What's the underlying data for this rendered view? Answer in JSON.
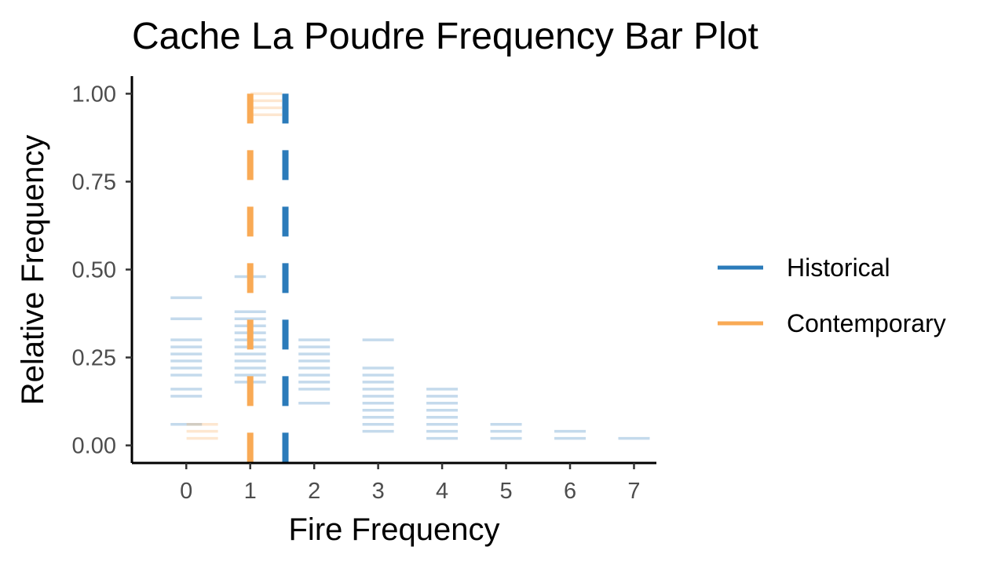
{
  "chart_data": {
    "type": "bar",
    "title": "Cache La Poudre Frequency Bar Plot",
    "xlabel": "Fire Frequency",
    "ylabel": "Relative Frequency",
    "x_ticks": [
      "0",
      "1",
      "2",
      "3",
      "4",
      "5",
      "6",
      "7"
    ],
    "y_ticks": [
      "0.00",
      "0.25",
      "0.50",
      "0.75",
      "1.00"
    ],
    "xlim": [
      -0.85,
      7.35
    ],
    "ylim": [
      -0.05,
      1.05
    ],
    "legend_position": "right",
    "series": [
      {
        "name": "Historical",
        "color": "#2b7bba",
        "line_style": "dashed",
        "mean_line_x": 1.55,
        "bars": [
          {
            "x": 0,
            "values": [
              0.06,
              0.14,
              0.16,
              0.2,
              0.22,
              0.24,
              0.26,
              0.28,
              0.3,
              0.36,
              0.42
            ]
          },
          {
            "x": 1,
            "values": [
              0.18,
              0.2,
              0.22,
              0.24,
              0.26,
              0.28,
              0.3,
              0.32,
              0.34,
              0.36,
              0.38,
              0.48
            ]
          },
          {
            "x": 2,
            "values": [
              0.12,
              0.16,
              0.18,
              0.2,
              0.22,
              0.24,
              0.26,
              0.28,
              0.3
            ]
          },
          {
            "x": 3,
            "values": [
              0.04,
              0.06,
              0.08,
              0.1,
              0.12,
              0.14,
              0.16,
              0.18,
              0.2,
              0.22,
              0.3
            ]
          },
          {
            "x": 4,
            "values": [
              0.02,
              0.04,
              0.06,
              0.08,
              0.1,
              0.12,
              0.14,
              0.16
            ]
          },
          {
            "x": 5,
            "values": [
              0.02,
              0.04,
              0.06
            ]
          },
          {
            "x": 6,
            "values": [
              0.02,
              0.04
            ]
          },
          {
            "x": 7,
            "values": [
              0.02
            ]
          }
        ]
      },
      {
        "name": "Contemporary",
        "color": "#f9aa55",
        "line_style": "dashed",
        "mean_line_x": 1.0,
        "bars": [
          {
            "x": 0,
            "values": [
              0.02,
              0.04,
              0.06
            ]
          },
          {
            "x": 1,
            "values": [
              0.94,
              0.96,
              0.98,
              1.0
            ]
          }
        ]
      }
    ]
  }
}
